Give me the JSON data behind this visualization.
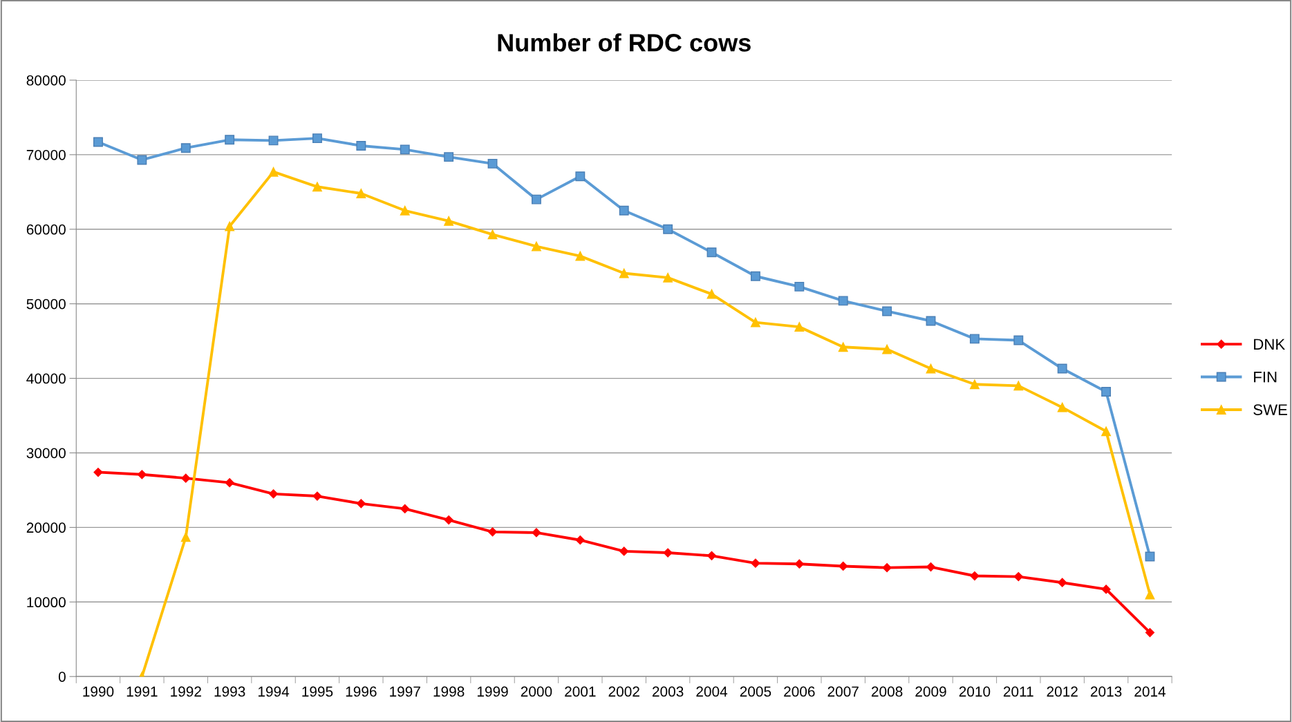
{
  "chart_data": {
    "type": "line",
    "title": "Number of RDC cows",
    "categories": [
      "1990",
      "1991",
      "1992",
      "1993",
      "1994",
      "1995",
      "1996",
      "1997",
      "1998",
      "1999",
      "2000",
      "2001",
      "2002",
      "2003",
      "2004",
      "2005",
      "2006",
      "2007",
      "2008",
      "2009",
      "2010",
      "2011",
      "2012",
      "2013",
      "2014"
    ],
    "series": [
      {
        "name": "DNK",
        "color": "#ff0000",
        "marker": "diamond",
        "values": [
          27400,
          27100,
          26600,
          26000,
          24500,
          24200,
          23200,
          22500,
          21000,
          19400,
          19300,
          18300,
          16800,
          16600,
          16200,
          15200,
          15100,
          14800,
          14600,
          14700,
          13500,
          13400,
          12600,
          11700,
          5900
        ]
      },
      {
        "name": "FIN",
        "color": "#5b9bd5",
        "marker": "square",
        "values": [
          71700,
          69300,
          70900,
          72000,
          71900,
          72200,
          71200,
          70700,
          69700,
          68800,
          64000,
          67100,
          62500,
          60000,
          56900,
          53700,
          52300,
          50400,
          49000,
          47700,
          45300,
          45100,
          41300,
          38200,
          16100
        ]
      },
      {
        "name": "SWE",
        "color": "#ffc000",
        "marker": "triangle",
        "values": [
          null,
          0,
          18700,
          60400,
          67700,
          65700,
          64800,
          62500,
          61100,
          59300,
          57700,
          56400,
          54100,
          53500,
          51300,
          47500,
          46900,
          44200,
          43900,
          41300,
          39200,
          39000,
          36100,
          32900,
          11000
        ]
      }
    ],
    "ylim": [
      0,
      80000
    ],
    "yticks": [
      0,
      10000,
      20000,
      30000,
      40000,
      50000,
      60000,
      70000,
      80000
    ],
    "grid": "y",
    "legend": "right"
  }
}
